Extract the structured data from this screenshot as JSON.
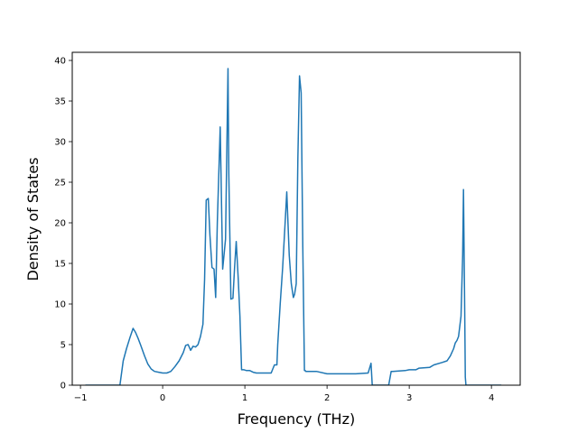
{
  "chart_data": {
    "type": "line",
    "title": "",
    "xlabel": "Frequency (THz)",
    "ylabel": "Density of States",
    "xlim": [
      -1.1,
      4.35
    ],
    "ylim": [
      0,
      41
    ],
    "xticks": [
      -1,
      0,
      1,
      2,
      3,
      4
    ],
    "yticks": [
      0,
      5,
      10,
      15,
      20,
      25,
      30,
      35,
      40
    ],
    "grid": false,
    "legend": "none",
    "series": [
      {
        "color": "#1f77b4",
        "x": [
          -0.94,
          -0.52,
          -0.48,
          -0.44,
          -0.4,
          -0.36,
          -0.33,
          -0.3,
          -0.27,
          -0.22,
          -0.18,
          -0.14,
          -0.1,
          -0.05,
          0.0,
          0.05,
          0.1,
          0.15,
          0.2,
          0.25,
          0.28,
          0.31,
          0.34,
          0.37,
          0.4,
          0.43,
          0.46,
          0.49,
          0.51,
          0.53,
          0.555,
          0.575,
          0.6,
          0.625,
          0.645,
          0.665,
          0.7,
          0.73,
          0.765,
          0.795,
          0.805,
          0.83,
          0.855,
          0.875,
          0.895,
          0.92,
          0.94,
          0.96,
          0.99,
          1.02,
          1.06,
          1.1,
          1.14,
          1.2,
          1.26,
          1.32,
          1.36,
          1.39,
          1.4,
          1.43,
          1.46,
          1.49,
          1.51,
          1.54,
          1.565,
          1.59,
          1.605,
          1.625,
          1.645,
          1.665,
          1.685,
          1.705,
          1.725,
          1.735,
          1.74,
          1.8,
          1.87,
          2.0,
          2.2,
          2.35,
          2.5,
          2.535,
          2.55,
          2.58,
          2.65,
          2.75,
          2.78,
          2.8,
          2.95,
          3.0,
          3.08,
          3.12,
          3.25,
          3.3,
          3.4,
          3.46,
          3.5,
          3.54,
          3.56,
          3.58,
          3.6,
          3.63,
          3.65,
          3.66,
          3.675,
          3.682,
          3.69,
          3.695,
          3.7,
          3.75,
          4.12
        ],
        "y": [
          0,
          0,
          3.0,
          4.5,
          5.8,
          7.0,
          6.5,
          5.8,
          5.0,
          3.6,
          2.6,
          2.0,
          1.7,
          1.6,
          1.5,
          1.5,
          1.7,
          2.3,
          3.0,
          4.0,
          4.9,
          5.0,
          4.3,
          4.8,
          4.7,
          5.0,
          6.0,
          7.5,
          13.0,
          22.8,
          23.0,
          18.5,
          14.5,
          14.3,
          10.8,
          20.0,
          31.8,
          14.3,
          18.0,
          39.0,
          26.0,
          10.6,
          10.7,
          14.5,
          17.7,
          13.0,
          8.5,
          1.9,
          1.9,
          1.8,
          1.8,
          1.6,
          1.5,
          1.5,
          1.5,
          1.5,
          2.5,
          2.5,
          5.0,
          10.0,
          14.5,
          20.0,
          23.8,
          16.0,
          12.5,
          10.8,
          11.2,
          12.5,
          28.0,
          38.1,
          36.0,
          17.0,
          1.8,
          1.8,
          1.7,
          1.7,
          1.7,
          1.4,
          1.4,
          1.4,
          1.5,
          2.7,
          0,
          0,
          0,
          0,
          1.7,
          1.7,
          1.8,
          1.9,
          1.9,
          2.1,
          2.2,
          2.5,
          2.8,
          3.0,
          3.6,
          4.5,
          5.2,
          5.5,
          6.0,
          8.5,
          16.0,
          24.1,
          9.0,
          1.0,
          0,
          0,
          0,
          0,
          0
        ]
      }
    ]
  }
}
